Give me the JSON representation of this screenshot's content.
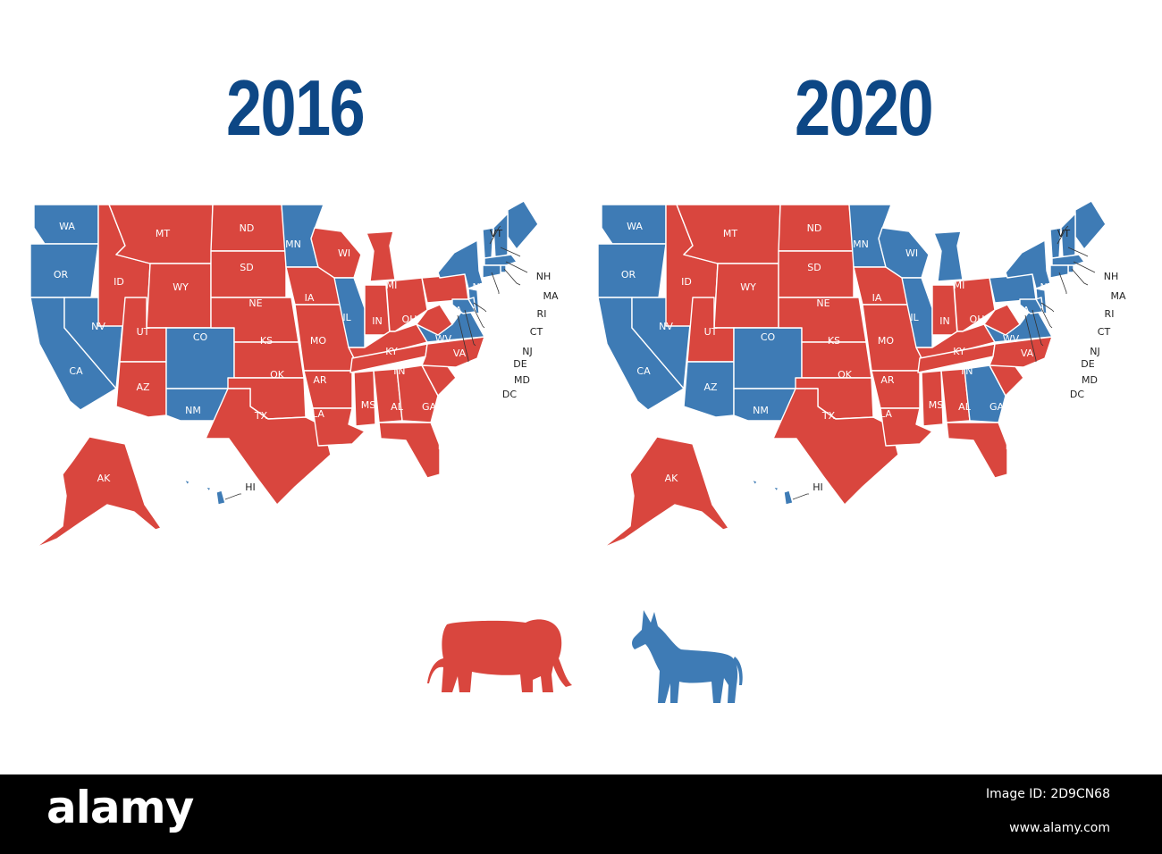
{
  "colors": {
    "republican": "#d9463e",
    "democrat": "#3e7bb5",
    "title": "#0d4785"
  },
  "maps": [
    {
      "year": "2016",
      "states": {
        "WA": "D",
        "OR": "D",
        "CA": "D",
        "NV": "D",
        "ID": "R",
        "MT": "R",
        "WY": "R",
        "UT": "R",
        "AZ": "R",
        "CO": "D",
        "NM": "D",
        "ND": "R",
        "SD": "R",
        "NE": "R",
        "KS": "R",
        "OK": "R",
        "TX": "R",
        "MN": "D",
        "IA": "R",
        "MO": "R",
        "AR": "R",
        "LA": "R",
        "WI": "R",
        "IL": "D",
        "MI": "R",
        "IN": "R",
        "OH": "R",
        "KY": "R",
        "TN": "R",
        "MS": "R",
        "AL": "R",
        "GA": "R",
        "FL": "R",
        "SC": "R",
        "NC": "R",
        "VA": "D",
        "WV": "R",
        "PA": "R",
        "NY": "D",
        "ME": "D",
        "VT": "D",
        "NH": "D",
        "MA": "D",
        "RI": "D",
        "CT": "D",
        "NJ": "D",
        "DE": "D",
        "MD": "D",
        "DC": "D",
        "AK": "R",
        "HI": "D"
      }
    },
    {
      "year": "2020",
      "states": {
        "WA": "D",
        "OR": "D",
        "CA": "D",
        "NV": "D",
        "ID": "R",
        "MT": "R",
        "WY": "R",
        "UT": "R",
        "AZ": "D",
        "CO": "D",
        "NM": "D",
        "ND": "R",
        "SD": "R",
        "NE": "R",
        "KS": "R",
        "OK": "R",
        "TX": "R",
        "MN": "D",
        "IA": "R",
        "MO": "R",
        "AR": "R",
        "LA": "R",
        "WI": "D",
        "IL": "D",
        "MI": "D",
        "IN": "R",
        "OH": "R",
        "KY": "R",
        "TN": "R",
        "MS": "R",
        "AL": "R",
        "GA": "D",
        "FL": "R",
        "SC": "R",
        "NC": "R",
        "VA": "D",
        "WV": "R",
        "PA": "D",
        "NY": "D",
        "ME": "D",
        "VT": "D",
        "NH": "D",
        "MA": "D",
        "RI": "D",
        "CT": "D",
        "NJ": "D",
        "DE": "D",
        "MD": "D",
        "DC": "D",
        "AK": "R",
        "HI": "D"
      }
    }
  ],
  "callout_labels": [
    "VT",
    "NH",
    "MA",
    "RI",
    "CT",
    "NJ",
    "DE",
    "MD",
    "DC",
    "HI"
  ],
  "icons": [
    "elephant-icon",
    "donkey-icon"
  ],
  "watermark": "alamy",
  "footer": {
    "brand": "alamy",
    "image_id": "Image ID: 2D9CN68",
    "url": "www.alamy.com"
  }
}
